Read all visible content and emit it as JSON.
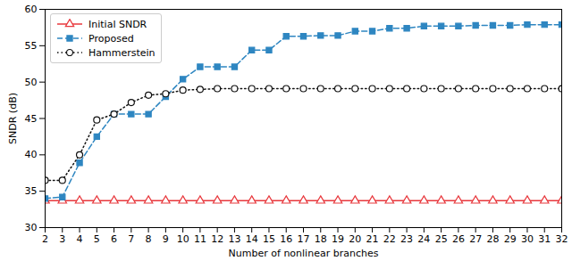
{
  "chart_data": {
    "type": "line",
    "x_label": "Number of nonlinear branches",
    "y_label": "SNDR (dB)",
    "x": [
      2,
      3,
      4,
      5,
      6,
      7,
      8,
      9,
      10,
      11,
      12,
      13,
      14,
      15,
      16,
      17,
      18,
      19,
      20,
      21,
      22,
      23,
      24,
      25,
      26,
      27,
      28,
      29,
      30,
      31,
      32
    ],
    "series": [
      {
        "name": "Initial SNDR",
        "color": "#e8383d",
        "marker": "triangle",
        "line_style": "solid",
        "values": [
          33.7,
          33.7,
          33.7,
          33.7,
          33.7,
          33.7,
          33.7,
          33.7,
          33.7,
          33.7,
          33.7,
          33.7,
          33.7,
          33.7,
          33.7,
          33.7,
          33.7,
          33.7,
          33.7,
          33.7,
          33.7,
          33.7,
          33.7,
          33.7,
          33.7,
          33.7,
          33.7,
          33.7,
          33.7,
          33.7,
          33.7
        ]
      },
      {
        "name": "Proposed",
        "color": "#2e86c1",
        "marker": "square",
        "line_style": "dashed",
        "values": [
          34.0,
          34.2,
          38.9,
          42.5,
          45.6,
          45.6,
          45.6,
          48.0,
          50.4,
          52.1,
          52.1,
          52.1,
          54.4,
          54.4,
          56.3,
          56.3,
          56.4,
          56.4,
          57.0,
          57.0,
          57.4,
          57.4,
          57.7,
          57.7,
          57.7,
          57.8,
          57.8,
          57.8,
          57.9,
          57.9,
          57.9
        ]
      },
      {
        "name": "Hammerstein",
        "color": "#111111",
        "marker": "circle",
        "line_style": "dotted",
        "values": [
          36.5,
          36.5,
          40.0,
          44.8,
          45.6,
          47.2,
          48.2,
          48.4,
          48.9,
          49.0,
          49.1,
          49.1,
          49.1,
          49.1,
          49.1,
          49.1,
          49.1,
          49.1,
          49.1,
          49.1,
          49.1,
          49.1,
          49.1,
          49.1,
          49.1,
          49.1,
          49.1,
          49.1,
          49.1,
          49.1,
          49.1
        ]
      }
    ],
    "xlim": [
      2,
      32
    ],
    "xticks": [
      2,
      3,
      4,
      5,
      6,
      7,
      8,
      9,
      10,
      11,
      12,
      13,
      14,
      15,
      16,
      17,
      18,
      19,
      20,
      21,
      22,
      23,
      24,
      25,
      26,
      27,
      28,
      29,
      30,
      31,
      32
    ],
    "ylim": [
      30,
      60
    ],
    "yticks": [
      30,
      35,
      40,
      45,
      50,
      55,
      60
    ],
    "grid": false,
    "legend": "upper left"
  }
}
